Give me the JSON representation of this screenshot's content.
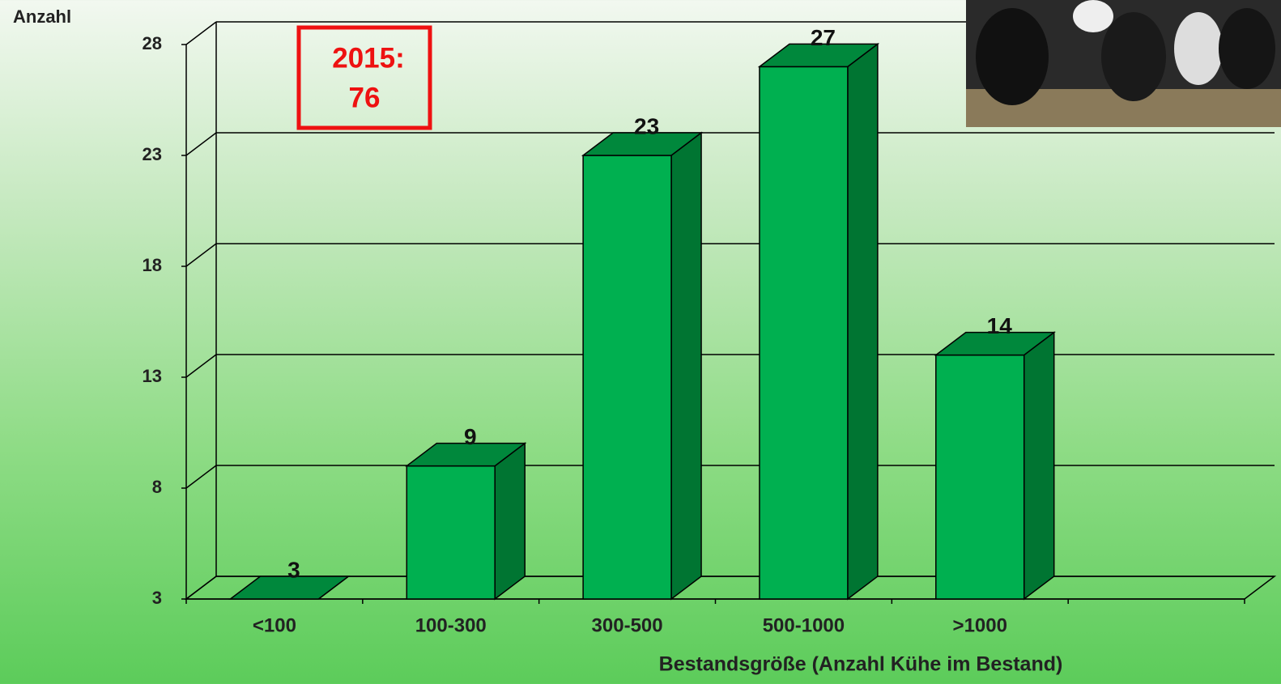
{
  "chart_data": {
    "type": "bar3d",
    "y_label": "Anzahl",
    "x_label": "Bestandsgröße (Anzahl Kühe im Bestand)",
    "annotation": [
      "2015:",
      "76"
    ],
    "categories": [
      "<100",
      "100-300",
      "300-500",
      "500-1000",
      ">1000",
      null
    ],
    "values": [
      3,
      9,
      23,
      27,
      14,
      null
    ],
    "color": "#00b050",
    "ylim": [
      3,
      28
    ],
    "yticks": [
      3,
      8,
      13,
      18,
      23,
      28
    ],
    "grid": true
  }
}
